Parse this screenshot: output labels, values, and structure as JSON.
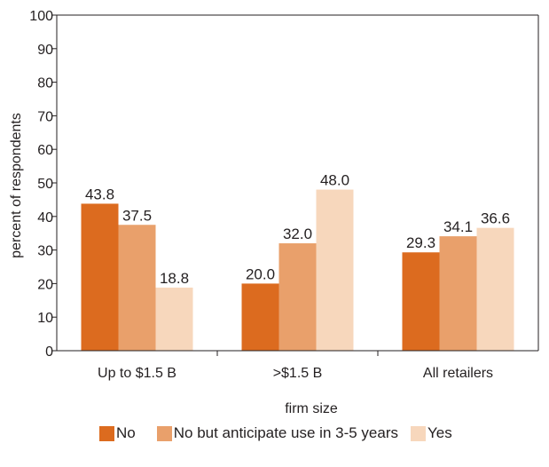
{
  "chart_data": {
    "type": "bar",
    "categories": [
      "Up to $1.5 B",
      ">$1.5 B",
      "All retailers"
    ],
    "series": [
      {
        "name": "No",
        "values": [
          43.8,
          20.0,
          29.3
        ],
        "labels": [
          "43.8",
          "20.0",
          "29.3"
        ],
        "color": "#dc6b1f"
      },
      {
        "name": "No but anticipate use in 3-5 years",
        "values": [
          37.5,
          32.0,
          34.1
        ],
        "labels": [
          "37.5",
          "32.0",
          "34.1"
        ],
        "color": "#e9a06b"
      },
      {
        "name": "Yes",
        "values": [
          18.8,
          48.0,
          36.6
        ],
        "labels": [
          "18.8",
          "48.0",
          "36.6"
        ],
        "color": "#f7d7bc"
      }
    ],
    "xlabel": "firm size",
    "ylabel": "percent of respondents",
    "ylim": [
      0,
      100
    ],
    "yticks": [
      "0",
      "10",
      "20",
      "30",
      "40",
      "50",
      "60",
      "70",
      "80",
      "90",
      "100"
    ],
    "grid": false,
    "legend_position": "bottom"
  }
}
